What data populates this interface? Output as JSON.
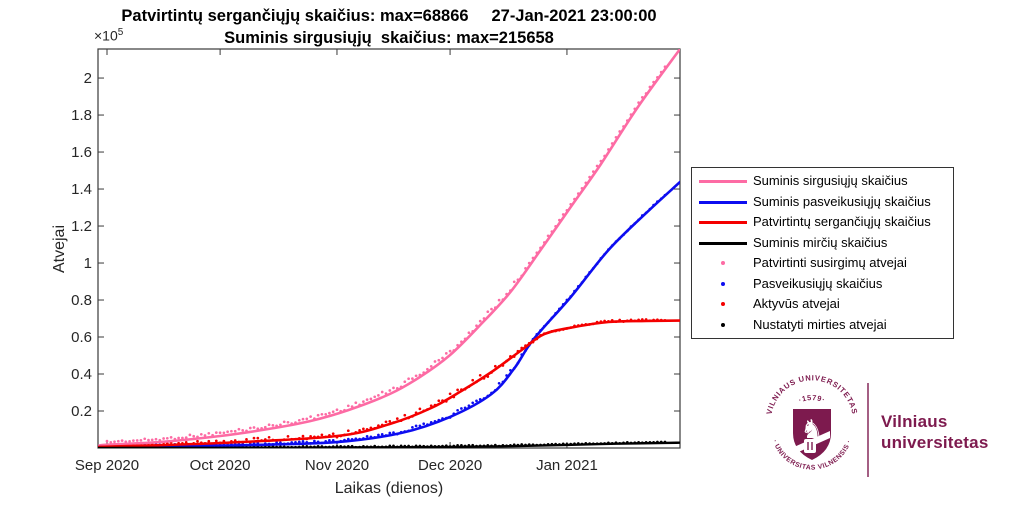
{
  "header": {
    "title_line1": "Patvirtintų sergančiųjų skaičius: max=68866     27-Jan-2021 23:00:00",
    "title_line2": "Suminis sirgusiųjų  skaičius: max=215658"
  },
  "axes": {
    "xlabel": "Laikas (dienos)",
    "ylabel": "Atvejai",
    "y_multiplier_base": "×10",
    "y_multiplier_exp": "5",
    "axis_color": "#3a3a3a",
    "tick_label_color": "#262626"
  },
  "chart_data": {
    "type": "line",
    "title": "Patvirtintų sergančiųjų skaičius: max=68866  27-Jan-2021 23:00:00 / Suminis sirgusiųjų skaičius: max=215658",
    "xlabel": "Laikas (dienos)",
    "ylabel": "Atvejai",
    "x_unit": "days since 2020-09-01",
    "x_range": [
      -2.4,
      152
    ],
    "ylim": [
      0,
      215700
    ],
    "grid": false,
    "legend_position": "right-outside",
    "x_ticks": [
      {
        "t": 0,
        "label": "Sep 2020"
      },
      {
        "t": 30,
        "label": "Oct 2020"
      },
      {
        "t": 61,
        "label": "Nov 2020"
      },
      {
        "t": 91,
        "label": "Dec 2020"
      },
      {
        "t": 122,
        "label": "Jan 2021"
      }
    ],
    "y_ticks": [
      {
        "v": 20000,
        "label": "0.2"
      },
      {
        "v": 40000,
        "label": "0.4"
      },
      {
        "v": 60000,
        "label": "0.6"
      },
      {
        "v": 80000,
        "label": "0.8"
      },
      {
        "v": 100000,
        "label": "1"
      },
      {
        "v": 120000,
        "label": "1.2"
      },
      {
        "v": 140000,
        "label": "1.4"
      },
      {
        "v": 160000,
        "label": "1.6"
      },
      {
        "v": 180000,
        "label": "1.8"
      },
      {
        "v": 200000,
        "label": "2"
      }
    ],
    "series": [
      {
        "name": "Suminis sirgusiųjų skaičius",
        "kind": "line",
        "color": "#fd6ba4",
        "width": 2.6,
        "max": 215658,
        "points": [
          [
            -2.4,
            1100
          ],
          [
            0,
            1800
          ],
          [
            14,
            3200
          ],
          [
            30,
            6500
          ],
          [
            43,
            10300
          ],
          [
            54,
            14600
          ],
          [
            64,
            20500
          ],
          [
            75,
            29200
          ],
          [
            83,
            38400
          ],
          [
            91,
            50300
          ],
          [
            99,
            66500
          ],
          [
            107,
            84300
          ],
          [
            115,
            107000
          ],
          [
            123,
            130300
          ],
          [
            131,
            153500
          ],
          [
            141,
            184900
          ],
          [
            152,
            215658
          ]
        ]
      },
      {
        "name": "Suminis pasveikusiųjų skaičius",
        "kind": "line",
        "color": "#0d0df0",
        "width": 2.6,
        "points": [
          [
            -2.4,
            500
          ],
          [
            0,
            600
          ],
          [
            20,
            1100
          ],
          [
            38,
            1600
          ],
          [
            61,
            3200
          ],
          [
            78,
            8100
          ],
          [
            91,
            16800
          ],
          [
            102,
            29200
          ],
          [
            108,
            43000
          ],
          [
            113,
            58400
          ],
          [
            123,
            81600
          ],
          [
            133,
            107000
          ],
          [
            143,
            127000
          ],
          [
            152,
            143800
          ]
        ]
      },
      {
        "name": "Patvirtintų sergančiųjų skaičius",
        "kind": "line",
        "color": "#f40000",
        "width": 2.6,
        "max": 68866,
        "points": [
          [
            -2.4,
            500
          ],
          [
            0,
            700
          ],
          [
            30,
            2700
          ],
          [
            61,
            6500
          ],
          [
            75,
            13000
          ],
          [
            86,
            21600
          ],
          [
            94,
            30800
          ],
          [
            102,
            41100
          ],
          [
            110,
            53000
          ],
          [
            116,
            61600
          ],
          [
            124,
            65400
          ],
          [
            133,
            68100
          ],
          [
            143,
            68700
          ],
          [
            152,
            68866
          ]
        ]
      },
      {
        "name": "Suminis mirčių skaičius",
        "kind": "line",
        "color": "#000000",
        "width": 2.4,
        "points": [
          [
            -2.4,
            20
          ],
          [
            0,
            50
          ],
          [
            30,
            120
          ],
          [
            61,
            250
          ],
          [
            91,
            600
          ],
          [
            107,
            1000
          ],
          [
            122,
            1700
          ],
          [
            135,
            2300
          ],
          [
            148,
            2750
          ],
          [
            152,
            2850
          ]
        ]
      },
      {
        "name": "Patvirtinti susirgimų atvejai",
        "kind": "scatter",
        "color": "#fd6ba4",
        "follows": 0,
        "t_start": 0,
        "t_end": 148,
        "jitter": {
          "bias": -2.8,
          "amp": 2.6,
          "late_amp": 0.7
        }
      },
      {
        "name": "Pasveikusiųjų skaičius",
        "kind": "scatter",
        "color": "#0d0df0",
        "follows": 1,
        "t_start": 0,
        "t_end": 148,
        "jitter": {
          "bias": -0.8,
          "amp": 1.8,
          "late_amp": 0.6
        }
      },
      {
        "name": "Aktyvūs atvejai",
        "kind": "scatter",
        "color": "#f40000",
        "follows": 2,
        "t_start": 0,
        "t_end": 148,
        "jitter": {
          "bias": -0.8,
          "amp": 3.2,
          "late_amp": 0.9
        }
      },
      {
        "name": "Nustatyti mirties atvejai",
        "kind": "scatter",
        "color": "#000000",
        "follows": 3,
        "t_start": 0,
        "t_end": 148,
        "jitter": {
          "bias": -0.8,
          "amp": 0.7,
          "late_amp": 0.4
        }
      }
    ]
  },
  "legend": {
    "entries": [
      {
        "label": "Suminis sirgusiųjų skaičius",
        "color": "#fd6ba4",
        "sample": "line"
      },
      {
        "label": "Suminis pasveikusiųjų skaičius",
        "color": "#0d0df0",
        "sample": "line"
      },
      {
        "label": "Patvirtintų sergančiųjų skaičius",
        "color": "#f40000",
        "sample": "line"
      },
      {
        "label": "Suminis mirčių skaičius",
        "color": "#000000",
        "sample": "line"
      },
      {
        "label": "Patvirtinti susirgimų atvejai",
        "color": "#fd6ba4",
        "sample": "dot"
      },
      {
        "label": "Pasveikusiųjų skaičius",
        "color": "#0d0df0",
        "sample": "dot"
      },
      {
        "label": "Aktyvūs atvejai",
        "color": "#f40000",
        "sample": "dot"
      },
      {
        "label": "Nustatyti mirties atvejai",
        "color": "#000000",
        "sample": "dot"
      }
    ]
  },
  "logo": {
    "brand_color": "#7d1a4e",
    "seal_top_arc": "VILNIAUS UNIVERSITETAS",
    "seal_year": "·1579·",
    "seal_bottom_arc": "· UNIVERSITAS VILNENSIS ·",
    "wordmark_line1": "Vilniaus",
    "wordmark_line2": "universitetas"
  }
}
